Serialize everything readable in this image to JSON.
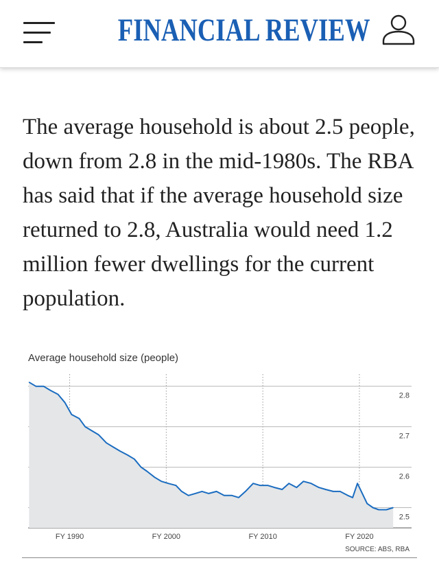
{
  "header": {
    "menu_icon": "hamburger-menu-icon",
    "brand": "FINANCIAL REVIEW",
    "brand_color": "#1a5fb4",
    "user_icon": "user-account-icon"
  },
  "article": {
    "paragraph": "The average household is about 2.5 people, down from 2.8 in the mid-1980s. The RBA has said that if the average household size returned to 2.8, Australia would need 1.2 million fewer dwellings for the current population."
  },
  "chart_data": {
    "type": "line",
    "title": "Average household size (people)",
    "source": "SOURCE: ABS, RBA",
    "xlabel": "",
    "ylabel": "",
    "xlim": [
      1985.7,
      2025.4
    ],
    "ylim": [
      2.45,
      2.83
    ],
    "x_ticks": [
      1990,
      2000,
      2010,
      2020
    ],
    "x_tick_labels": [
      "FY 1990",
      "FY 2000",
      "FY 2010",
      "FY 2020"
    ],
    "y_ticks": [
      2.5,
      2.6,
      2.7,
      2.8
    ],
    "y_tick_labels": [
      "2.5",
      "2.6",
      "2.7",
      "2.8"
    ],
    "grid": true,
    "line_color": "#1a6cc0",
    "area_color": "#e4e6e8",
    "series": [
      {
        "name": "Average household size",
        "x": [
          1985.8,
          1986.5,
          1987.3,
          1988.0,
          1988.8,
          1989.5,
          1990.2,
          1991.0,
          1991.6,
          1992.3,
          1993.0,
          1993.8,
          1994.5,
          1995.2,
          1996.0,
          1996.7,
          1997.4,
          1998.0,
          1998.8,
          1999.5,
          2000.2,
          2001.0,
          2001.6,
          2002.3,
          2003.0,
          2003.7,
          2004.4,
          2005.2,
          2006.0,
          2006.8,
          2007.5,
          2008.2,
          2009.0,
          2009.7,
          2010.5,
          2011.2,
          2012.0,
          2012.7,
          2013.5,
          2014.2,
          2015.0,
          2015.8,
          2016.5,
          2017.3,
          2018.0,
          2018.8,
          2019.3,
          2019.8,
          2020.3,
          2020.8,
          2021.4,
          2022.0,
          2022.8,
          2023.5
        ],
        "y": [
          2.81,
          2.8,
          2.8,
          2.79,
          2.78,
          2.76,
          2.73,
          2.72,
          2.7,
          2.69,
          2.68,
          2.66,
          2.65,
          2.64,
          2.63,
          2.62,
          2.6,
          2.59,
          2.575,
          2.565,
          2.56,
          2.555,
          2.54,
          2.53,
          2.535,
          2.54,
          2.535,
          2.54,
          2.53,
          2.53,
          2.525,
          2.54,
          2.56,
          2.555,
          2.555,
          2.55,
          2.545,
          2.56,
          2.55,
          2.565,
          2.56,
          2.55,
          2.545,
          2.54,
          2.54,
          2.53,
          2.525,
          2.56,
          2.535,
          2.51,
          2.5,
          2.495,
          2.495,
          2.5
        ]
      }
    ]
  }
}
